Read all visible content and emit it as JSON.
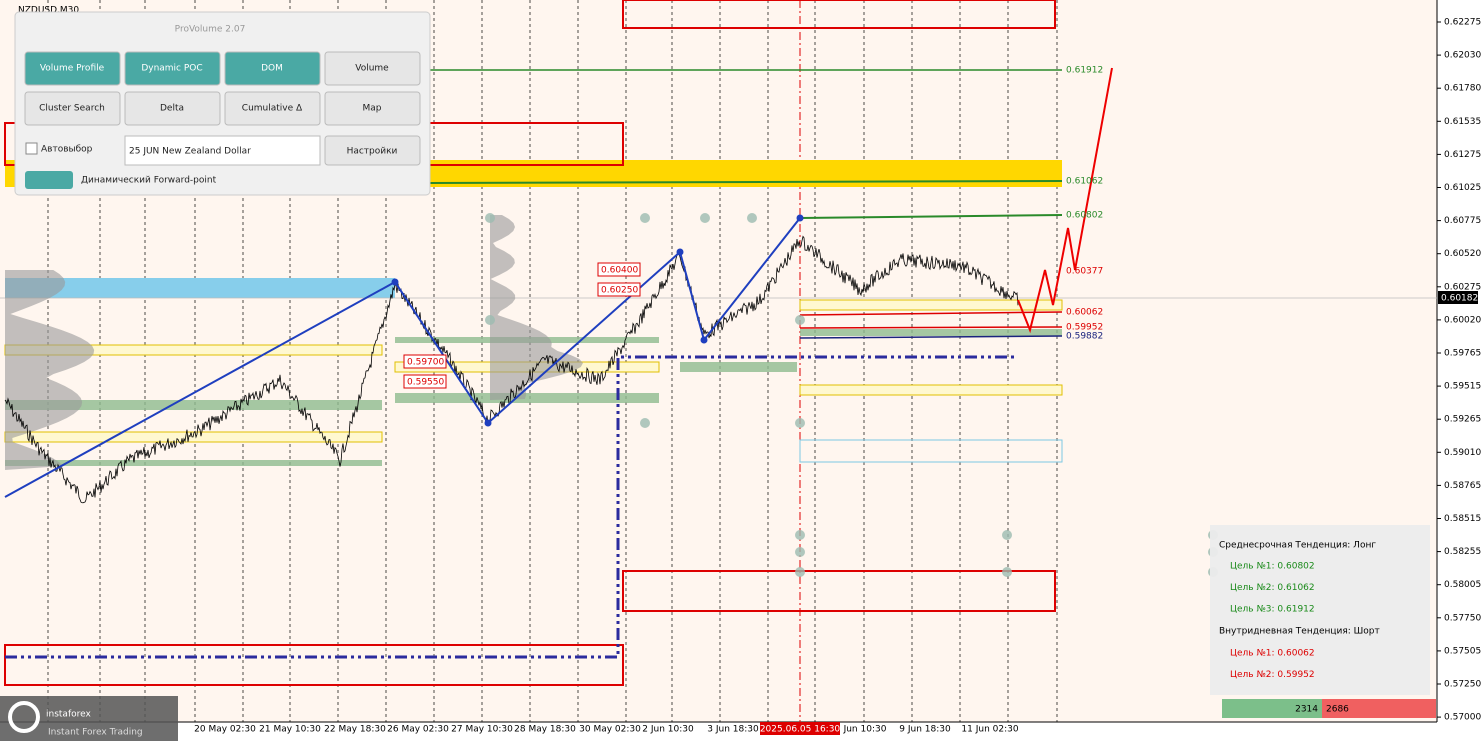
{
  "symbol": "NZDUSD,M30",
  "panel": {
    "title": "ProVolume 2.07",
    "buttons": [
      "Volume Profile",
      "Dynamic POC",
      "DOM",
      "Volume",
      "Cluster Search",
      "Delta",
      "Cumulative Δ",
      "Map"
    ],
    "auto_select": "Автовыбор",
    "instrument": "25 JUN New Zealand Dollar",
    "settings": "Настройки",
    "forward_point": "Динамический Forward-point"
  },
  "price_axis": [
    "0.62275",
    "0.62030",
    "0.61780",
    "0.61535",
    "0.61275",
    "0.61025",
    "0.60775",
    "0.60520",
    "0.60275",
    "0.60020",
    "0.59765",
    "0.59515",
    "0.59265",
    "0.59010",
    "0.58765",
    "0.58515",
    "0.58255",
    "0.58005",
    "0.57750",
    "0.57505",
    "0.57250",
    "0.57000"
  ],
  "current_price": "0.60182",
  "time_axis": [
    "20 May 02:30",
    "21 May 10:30",
    "22 May 18:30",
    "26 May 02:30",
    "27 May 10:30",
    "28 May 18:30",
    "30 May 02:30",
    "2 Jun 10:30",
    "3 Jun 18:30",
    "2025.06.05 16:30",
    "Jun 10:30",
    "9 Jun 18:30",
    "11 Jun 02:30"
  ],
  "level_labels": [
    "0.61912",
    "0.61062",
    "0.60802",
    "0.60377",
    "0.60062",
    "0.59952",
    "0.59882"
  ],
  "box_labels": [
    "0.60400",
    "0.60250",
    "0.59700",
    "0.59550"
  ],
  "info": {
    "mid_trend": "Среднесрочная Тенденция: Лонг",
    "mid_targets": [
      "Цель №1: 0.60802",
      "Цель №2: 0.61062",
      "Цель №3: 0.61912"
    ],
    "intraday_trend": "Внутридневная Тенденция: Шорт",
    "intraday_targets": [
      "Цель №1: 0.60062",
      "Цель №2: 0.59952"
    ]
  },
  "volume_bar": [
    "2314",
    "2686"
  ],
  "logo": {
    "name": "instaforex",
    "tagline": "Instant Forex Trading"
  }
}
